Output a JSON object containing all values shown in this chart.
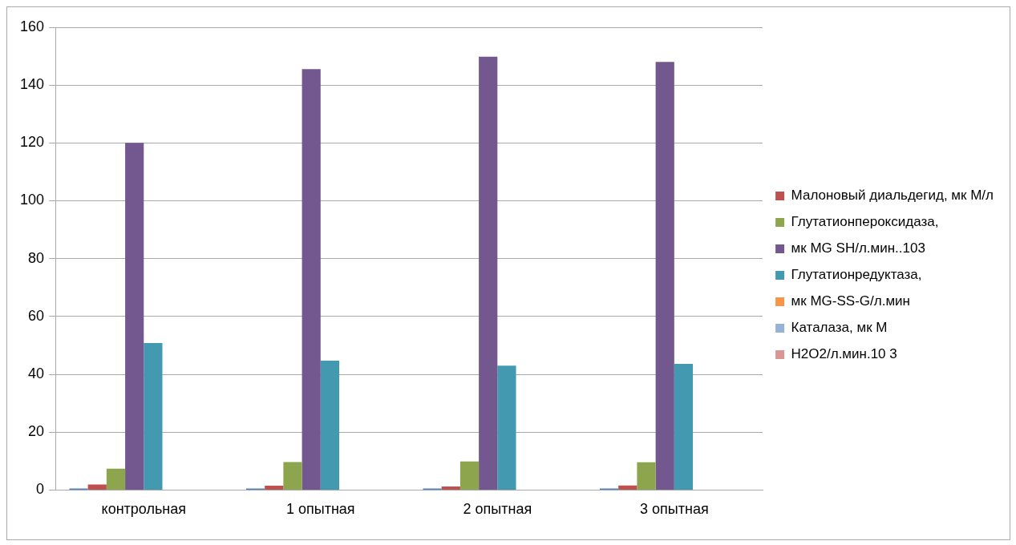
{
  "chart_data": {
    "type": "bar",
    "categories": [
      "контрольная",
      "1 опытная",
      "2 опытная",
      "3 опытная"
    ],
    "series": [
      {
        "color": "#4f81bd",
        "values": [
          0.5,
          0.5,
          0.5,
          0.5
        ]
      },
      {
        "name": "Малоновый диальдегид, мк М/л",
        "color": "#c0504d",
        "values": [
          1.9,
          1.5,
          1.2,
          1.6
        ]
      },
      {
        "name": "Глутатионпероксидаза,",
        "color": "#8da64e",
        "values": [
          7.4,
          9.7,
          9.9,
          9.6
        ]
      },
      {
        "name": "мк MG SH/л.мин..103",
        "color": "#72588f",
        "values": [
          120,
          145.5,
          149.8,
          148
        ]
      },
      {
        "name": "Глутатионредуктаза,",
        "color": "#4299b0",
        "values": [
          50.8,
          44.7,
          43,
          43.6
        ]
      },
      {
        "name": "мк MG-SS-G/л.мин",
        "color": "#f79646",
        "values": [
          null,
          null,
          null,
          null
        ]
      },
      {
        "name": "Каталаза, мк М",
        "color": "#95b3d7",
        "values": [
          null,
          null,
          null,
          null
        ]
      },
      {
        "name": "H2O2/л.мин.10 3",
        "color": "#d99694",
        "values": [
          null,
          null,
          null,
          null
        ]
      }
    ],
    "ylim": [
      0,
      160
    ],
    "yticks": [
      0,
      20,
      40,
      60,
      80,
      100,
      120,
      140,
      160
    ],
    "grid": "y",
    "legend": "right"
  }
}
